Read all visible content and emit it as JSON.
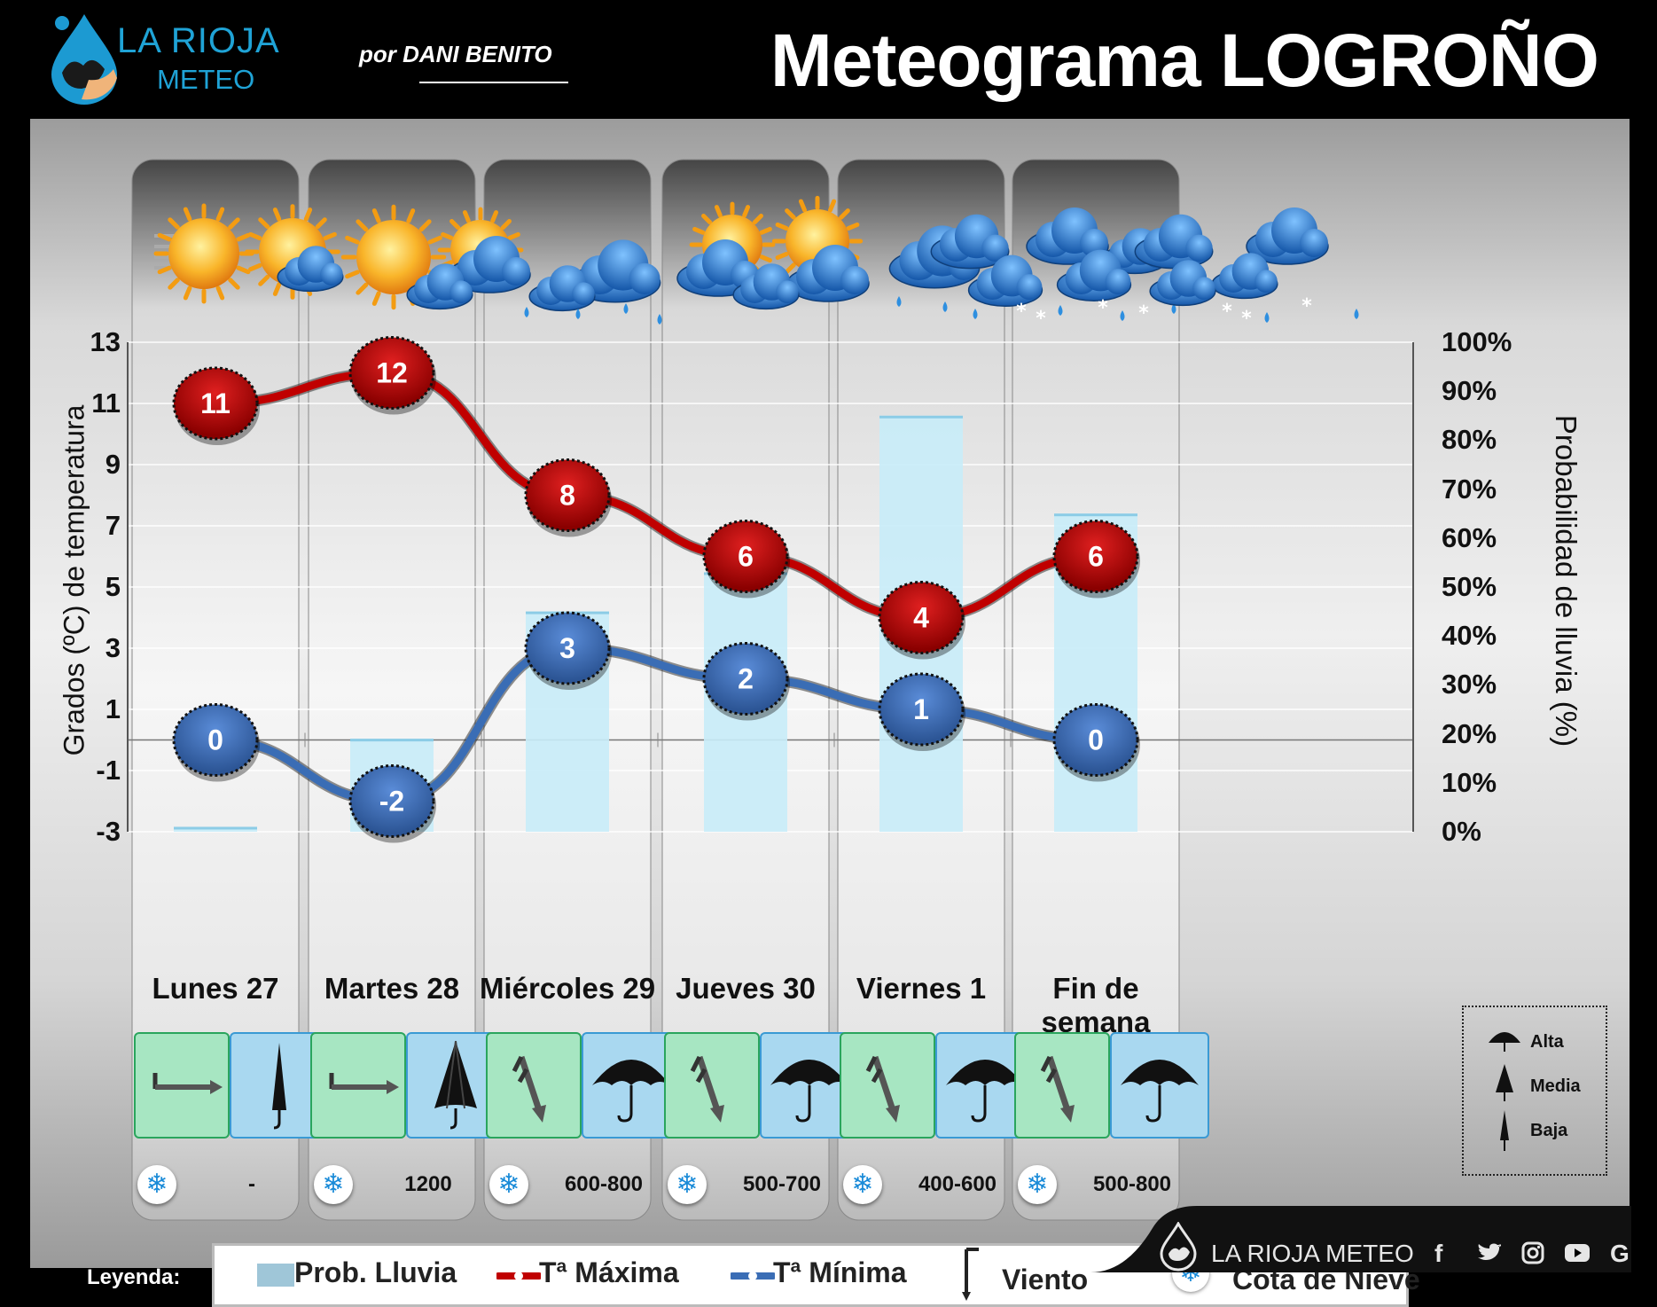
{
  "header": {
    "brand_line1": "LA RIOJA",
    "brand_line2": "METEO",
    "byline": "por DANI BENITO",
    "title": "Meteograma LOGROÑO"
  },
  "chart_data": {
    "type": "line",
    "categories": [
      "Lunes 27",
      "Martes 28",
      "Miércoles 29",
      "Jueves 30",
      "Viernes 1",
      "Fin de semana"
    ],
    "series": [
      {
        "name": "Tª Máxima",
        "values": [
          11,
          12,
          8,
          6,
          4,
          6
        ],
        "color": "#c00000"
      },
      {
        "name": "Tª Mínima",
        "values": [
          0,
          -2,
          3,
          2,
          1,
          0
        ],
        "color": "#3a6db5"
      }
    ],
    "bars": {
      "name": "Prob. Lluvia",
      "values": [
        1,
        19,
        45,
        53,
        85,
        65
      ],
      "unit": "%",
      "color": "#c8ecf8"
    },
    "ylabel": "Grados (ºC) de temperatura",
    "ylabel_right": "Probabilidad de lluvia (%)",
    "ylim": [
      -3,
      13
    ],
    "y_ticks": [
      13,
      11,
      9,
      7,
      5,
      3,
      1,
      -1,
      -3
    ],
    "ylim_right": [
      0,
      100
    ],
    "y_ticks_right": [
      "100%",
      "90%",
      "80%",
      "70%",
      "60%",
      "50%",
      "40%",
      "30%",
      "20%",
      "10%",
      "0%"
    ]
  },
  "days": [
    {
      "label": "Lunes 27",
      "snow_level": "-",
      "wind_icon": "wind-east-icon",
      "rain_icon": "umbrella-closed-icon"
    },
    {
      "label": "Martes 28",
      "snow_level": "1200",
      "wind_icon": "wind-east-icon",
      "rain_icon": "umbrella-half-icon"
    },
    {
      "label": "Miércoles 29",
      "snow_level": "600-800",
      "wind_icon": "wind-south-icon",
      "rain_icon": "umbrella-open-icon"
    },
    {
      "label": "Jueves 30",
      "snow_level": "500-700",
      "wind_icon": "wind-south-icon",
      "rain_icon": "umbrella-open-icon"
    },
    {
      "label": "Viernes 1",
      "snow_level": "400-600",
      "wind_icon": "wind-south-icon",
      "rain_icon": "umbrella-open-icon"
    },
    {
      "label": "Fin de semana",
      "snow_level": "500-800",
      "wind_icon": "wind-south-icon",
      "rain_icon": "umbrella-open-icon"
    }
  ],
  "rain_legend": {
    "high": "Alta",
    "medium": "Media",
    "low": "Baja"
  },
  "legend": {
    "label": "Leyenda:",
    "rain": "Prob. Lluvia",
    "tmax": "Tª Máxima",
    "tmin": "Tª Mínima",
    "wind": "Viento",
    "snow": "Cota de Nieve"
  },
  "footer": {
    "brand": "LA RIOJA METEO",
    "social": [
      "f",
      "t",
      "ig",
      "yt",
      "G"
    ]
  },
  "colors": {
    "max": "#c00000",
    "min": "#3a6db5",
    "rain": "#c8ecf8",
    "sun": "#f7b22c",
    "cloud": "#2f7fd0"
  }
}
